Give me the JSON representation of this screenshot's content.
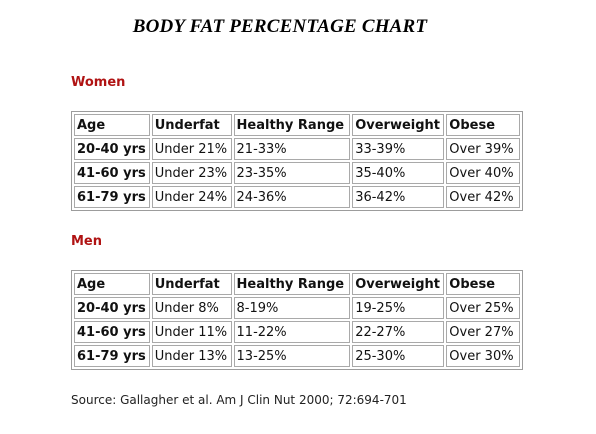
{
  "title": "BODY FAT PERCENTAGE CHART",
  "colors": {
    "section_heading": "#b01313",
    "table_border": "#a9a9a9"
  },
  "women": {
    "heading": "Women",
    "headers": [
      "Age",
      "Underfat",
      "Healthy Range",
      "Overweight",
      "Obese"
    ],
    "rows": [
      [
        "20-40 yrs",
        "Under 21%",
        "21-33%",
        "33-39%",
        "Over 39%"
      ],
      [
        "41-60 yrs",
        "Under 23%",
        "23-35%",
        "35-40%",
        "Over 40%"
      ],
      [
        "61-79 yrs",
        "Under 24%",
        "24-36%",
        "36-42%",
        "Over 42%"
      ]
    ]
  },
  "men": {
    "heading": "Men",
    "headers": [
      "Age",
      "Underfat",
      "Healthy Range",
      "Overweight",
      "Obese"
    ],
    "rows": [
      [
        "20-40 yrs",
        "Under 8%",
        "8-19%",
        "19-25%",
        "Over 25%"
      ],
      [
        "41-60 yrs",
        "Under 11%",
        "11-22%",
        "22-27%",
        "Over 27%"
      ],
      [
        "61-79 yrs",
        "Under 13%",
        "13-25%",
        "25-30%",
        "Over 30%"
      ]
    ]
  },
  "source": "Source: Gallagher et al. Am J Clin Nut 2000; 72:694-701"
}
